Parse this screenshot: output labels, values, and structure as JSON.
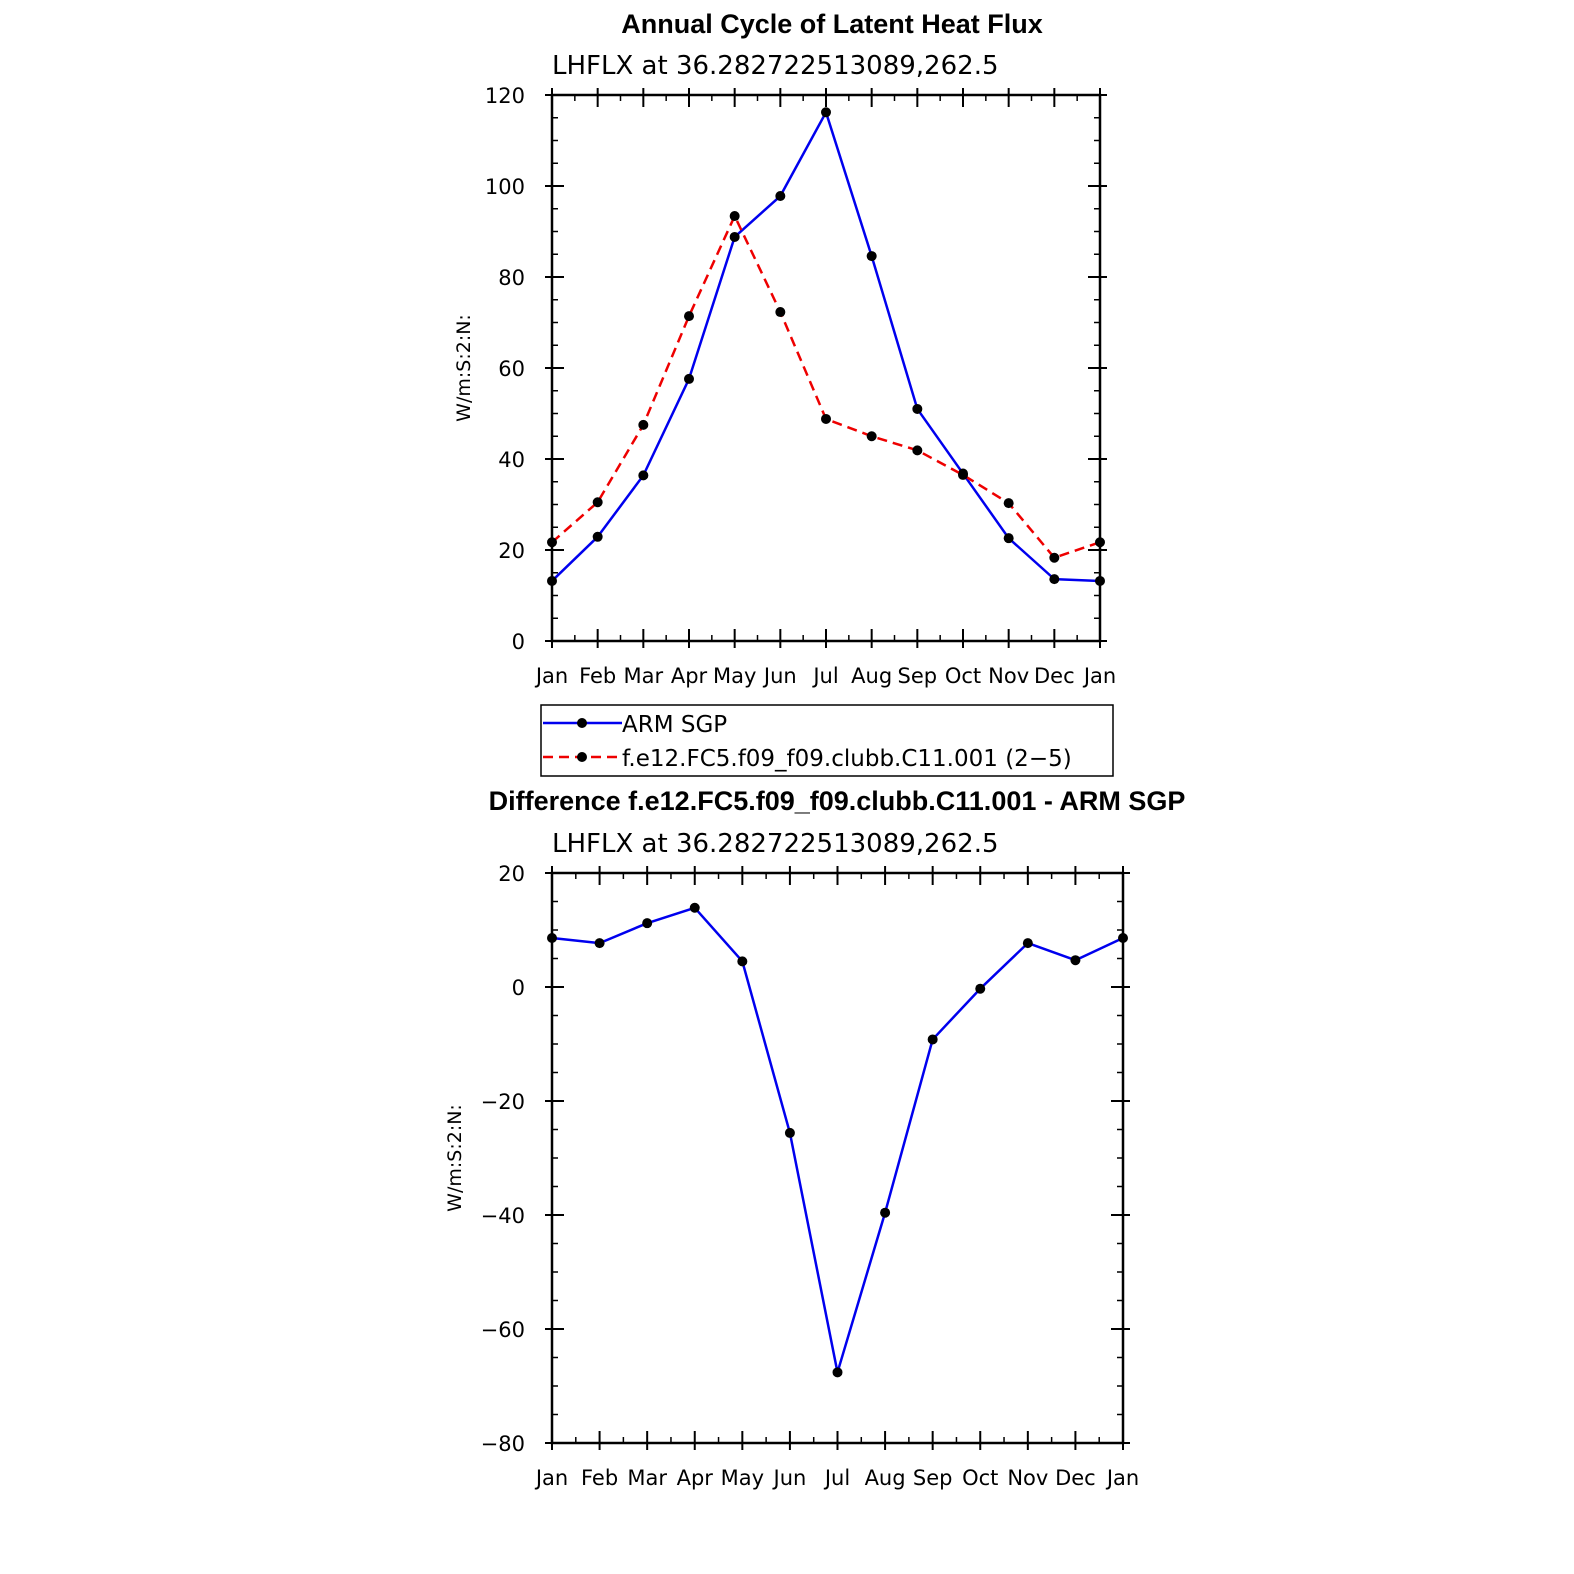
{
  "chart_data": [
    {
      "type": "line",
      "title": "Annual Cycle of Latent Heat Flux",
      "subtitle": "LHFLX at 36.282722513089,262.5",
      "xlabel": "",
      "ylabel": "W/m:S:2:N:",
      "categories": [
        "Jan",
        "Feb",
        "Mar",
        "Apr",
        "May",
        "Jun",
        "Jul",
        "Aug",
        "Sep",
        "Oct",
        "Nov",
        "Dec",
        "Jan"
      ],
      "ylim": [
        0,
        120
      ],
      "yticks": [
        0,
        20,
        40,
        60,
        80,
        100,
        120
      ],
      "grid": false,
      "legend_position": "bottom",
      "series": [
        {
          "name": "ARM SGP",
          "color": "#0000ee",
          "dash": "solid",
          "values": [
            13.2,
            22.9,
            36.4,
            57.6,
            88.8,
            97.8,
            116.2,
            84.6,
            51.0,
            36.8,
            22.6,
            13.6,
            13.2
          ]
        },
        {
          "name": "f.e12.FC5.f09_f09.clubb.C11.001 (2−5)",
          "color": "#ee0000",
          "dash": "dashed",
          "values": [
            21.7,
            30.5,
            47.5,
            71.4,
            93.4,
            72.3,
            48.8,
            45.0,
            41.9,
            36.5,
            30.3,
            18.3,
            21.7
          ]
        }
      ]
    },
    {
      "type": "line",
      "title": "Difference f.e12.FC5.f09_f09.clubb.C11.001 - ARM SGP",
      "subtitle": "LHFLX at 36.282722513089,262.5",
      "xlabel": "",
      "ylabel": "W/m:S:2:N:",
      "categories": [
        "Jan",
        "Feb",
        "Mar",
        "Apr",
        "May",
        "Jun",
        "Jul",
        "Aug",
        "Sep",
        "Oct",
        "Nov",
        "Dec",
        "Jan"
      ],
      "ylim": [
        -80,
        20
      ],
      "yticks": [
        -80,
        -60,
        -40,
        -20,
        0,
        20
      ],
      "grid": false,
      "series": [
        {
          "color": "#0000ee",
          "dash": "solid",
          "values": [
            8.6,
            7.7,
            11.2,
            13.9,
            4.5,
            -25.6,
            -67.6,
            -39.6,
            -9.2,
            -0.3,
            7.7,
            4.7,
            8.6
          ]
        }
      ]
    }
  ]
}
